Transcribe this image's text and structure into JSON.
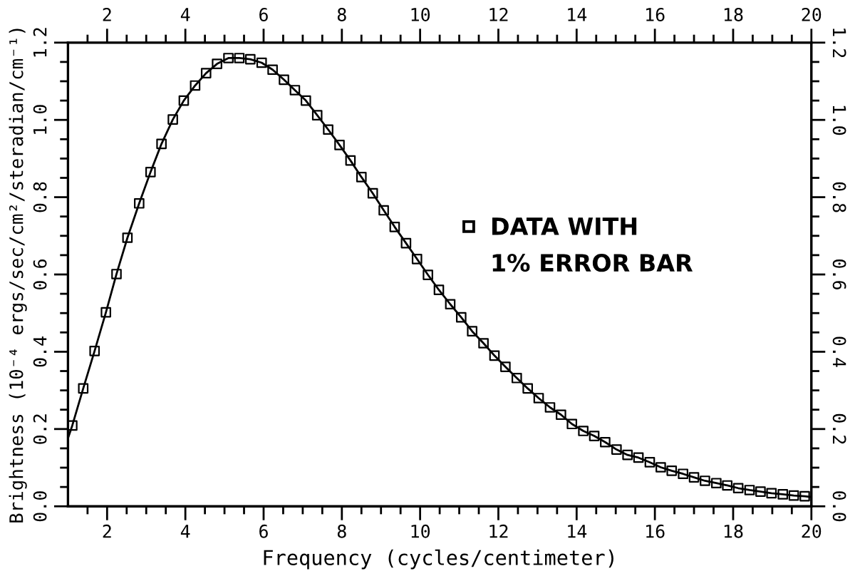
{
  "chart_data": {
    "type": "scatter",
    "xlabel": "Frequency (cycles/centimeter)",
    "ylabel": "Brightness (10⁻⁴ ergs/sec/cm²/steradian/cm⁻¹)",
    "legend": "right",
    "xlim": [
      1,
      20
    ],
    "xticks": [
      {
        "value": 1.5,
        "label": null
      },
      2,
      {
        "value": 2.5,
        "label": null
      },
      {
        "value": 3,
        "label": null
      },
      {
        "value": 3.5,
        "label": null
      },
      4,
      {
        "value": 4.5,
        "label": null
      },
      {
        "value": 5,
        "label": null
      },
      {
        "value": 5.5,
        "label": null
      },
      6,
      {
        "value": 6.5,
        "label": null
      },
      {
        "value": 7,
        "label": null
      },
      {
        "value": 7.5,
        "label": null
      },
      8,
      {
        "value": 8.5,
        "label": null
      },
      {
        "value": 9,
        "label": null
      },
      {
        "value": 9.5,
        "label": null
      },
      10,
      {
        "value": 10.5,
        "label": null
      },
      {
        "value": 11,
        "label": null
      },
      {
        "value": 11.5,
        "label": null
      },
      12,
      {
        "value": 12.5,
        "label": null
      },
      {
        "value": 13,
        "label": null
      },
      {
        "value": 13.5,
        "label": null
      },
      14,
      {
        "value": 14.5,
        "label": null
      },
      {
        "value": 15,
        "label": null
      },
      {
        "value": 15.5,
        "label": null
      },
      16,
      {
        "value": 16.5,
        "label": null
      },
      {
        "value": 17,
        "label": null
      },
      {
        "value": 17.5,
        "label": null
      },
      18,
      {
        "value": 18.5,
        "label": null
      },
      {
        "value": 19,
        "label": null
      },
      {
        "value": 19.5,
        "label": null
      },
      20
    ],
    "x2lim": [
      1,
      20
    ],
    "x2ticks": [
      {
        "value": 1.5,
        "label": null
      },
      2,
      {
        "value": 2.5,
        "label": null
      },
      {
        "value": 3,
        "label": null
      },
      {
        "value": 3.5,
        "label": null
      },
      4,
      {
        "value": 4.5,
        "label": null
      },
      {
        "value": 5,
        "label": null
      },
      {
        "value": 5.5,
        "label": null
      },
      6,
      {
        "value": 6.5,
        "label": null
      },
      {
        "value": 7,
        "label": null
      },
      {
        "value": 7.5,
        "label": null
      },
      8,
      {
        "value": 8.5,
        "label": null
      },
      {
        "value": 9,
        "label": null
      },
      {
        "value": 9.5,
        "label": null
      },
      10,
      {
        "value": 10.5,
        "label": null
      },
      {
        "value": 11,
        "label": null
      },
      {
        "value": 11.5,
        "label": null
      },
      12,
      {
        "value": 12.5,
        "label": null
      },
      {
        "value": 13,
        "label": null
      },
      {
        "value": 13.5,
        "label": null
      },
      14,
      {
        "value": 14.5,
        "label": null
      },
      {
        "value": 15,
        "label": null
      },
      {
        "value": 15.5,
        "label": null
      },
      16,
      {
        "value": 16.5,
        "label": null
      },
      {
        "value": 17,
        "label": null
      },
      {
        "value": 17.5,
        "label": null
      },
      18,
      {
        "value": 18.5,
        "label": null
      },
      {
        "value": 19,
        "label": null
      },
      {
        "value": 19.5,
        "label": null
      },
      20
    ],
    "ylim": [
      0,
      1.2
    ],
    "yticks": [
      {
        "value": 0,
        "label": "0.0"
      },
      {
        "value": 0.05,
        "label": null
      },
      {
        "value": 0.1,
        "label": null
      },
      {
        "value": 0.15,
        "label": null
      },
      0.2,
      {
        "value": 0.25,
        "label": null
      },
      {
        "value": 0.3,
        "label": null
      },
      {
        "value": 0.35,
        "label": null
      },
      0.4,
      {
        "value": 0.45,
        "label": null
      },
      {
        "value": 0.5,
        "label": null
      },
      {
        "value": 0.55,
        "label": null
      },
      0.6,
      {
        "value": 0.65,
        "label": null
      },
      {
        "value": 0.7,
        "label": null
      },
      {
        "value": 0.75,
        "label": null
      },
      0.8,
      {
        "value": 0.85,
        "label": null
      },
      {
        "value": 0.9,
        "label": null
      },
      {
        "value": 0.95,
        "label": null
      },
      {
        "value": 1,
        "label": "1.0"
      },
      {
        "value": 1.05,
        "label": null
      },
      {
        "value": 1.1,
        "label": null
      },
      {
        "value": 1.15,
        "label": null
      },
      1.2
    ],
    "y2lim": [
      0,
      1.2
    ],
    "y2ticks": [
      {
        "value": 0,
        "label": "0.0"
      },
      {
        "value": 0.05,
        "label": null
      },
      {
        "value": 0.1,
        "label": null
      },
      {
        "value": 0.15,
        "label": null
      },
      0.2,
      {
        "value": 0.25,
        "label": null
      },
      {
        "value": 0.3,
        "label": null
      },
      {
        "value": 0.35,
        "label": null
      },
      0.4,
      {
        "value": 0.45,
        "label": null
      },
      {
        "value": 0.5,
        "label": null
      },
      {
        "value": 0.55,
        "label": null
      },
      0.6,
      {
        "value": 0.65,
        "label": null
      },
      {
        "value": 0.7,
        "label": null
      },
      {
        "value": 0.75,
        "label": null
      },
      0.8,
      {
        "value": 0.85,
        "label": null
      },
      {
        "value": 0.9,
        "label": null
      },
      {
        "value": 0.95,
        "label": null
      },
      {
        "value": 1,
        "label": "1.0"
      },
      {
        "value": 1.05,
        "label": null
      },
      {
        "value": 1.1,
        "label": null
      },
      {
        "value": 1.15,
        "label": null
      },
      1.2
    ],
    "series": [
      {
        "type": "line",
        "color": "#000000",
        "marker": "none",
        "line_style": "solid",
        "x": [
          1.0,
          1.11,
          1.39,
          1.68,
          1.97,
          2.24,
          2.52,
          2.82,
          3.11,
          3.39,
          3.68,
          3.96,
          4.25,
          4.53,
          4.81,
          5.1,
          5.38,
          5.66,
          5.95,
          6.23,
          6.52,
          6.8,
          7.08,
          7.37,
          7.65,
          7.94,
          8.22,
          8.5,
          8.79,
          9.07,
          9.35,
          9.64,
          9.92,
          10.2,
          10.48,
          10.77,
          11.05,
          11.33,
          11.62,
          11.9,
          12.18,
          12.47,
          12.75,
          13.03,
          13.32,
          13.6,
          13.88,
          14.17,
          14.45,
          14.73,
          15.02,
          15.3,
          15.58,
          15.87,
          16.15,
          16.43,
          16.72,
          17.0,
          17.28,
          17.57,
          17.85,
          18.13,
          18.42,
          18.7,
          18.98,
          19.27,
          19.55,
          19.83,
          20.0
        ],
        "values": [
          0.176,
          0.209,
          0.305,
          0.402,
          0.502,
          0.601,
          0.695,
          0.784,
          0.865,
          0.938,
          1.001,
          1.05,
          1.089,
          1.121,
          1.145,
          1.16,
          1.16,
          1.157,
          1.148,
          1.13,
          1.104,
          1.077,
          1.05,
          1.012,
          0.975,
          0.935,
          0.895,
          0.852,
          0.81,
          0.766,
          0.723,
          0.681,
          0.64,
          0.599,
          0.56,
          0.523,
          0.489,
          0.453,
          0.422,
          0.39,
          0.361,
          0.332,
          0.305,
          0.28,
          0.256,
          0.237,
          0.213,
          0.195,
          0.182,
          0.166,
          0.147,
          0.133,
          0.126,
          0.114,
          0.101,
          0.092,
          0.084,
          0.075,
          0.066,
          0.06,
          0.054,
          0.047,
          0.042,
          0.038,
          0.034,
          0.031,
          0.028,
          0.026,
          0.024
        ]
      },
      {
        "name": "DATA WITH\n1% ERROR BAR",
        "color": "#000000",
        "marker": "square",
        "x": [
          1.11,
          1.39,
          1.68,
          1.97,
          2.24,
          2.52,
          2.82,
          3.11,
          3.39,
          3.68,
          3.96,
          4.25,
          4.53,
          4.81,
          5.1,
          5.38,
          5.66,
          5.95,
          6.23,
          6.52,
          6.8,
          7.08,
          7.37,
          7.65,
          7.94,
          8.22,
          8.5,
          8.79,
          9.07,
          9.35,
          9.64,
          9.92,
          10.2,
          10.48,
          10.77,
          11.05,
          11.33,
          11.62,
          11.9,
          12.18,
          12.47,
          12.75,
          13.03,
          13.32,
          13.6,
          13.88,
          14.17,
          14.45,
          14.73,
          15.02,
          15.3,
          15.58,
          15.87,
          16.15,
          16.43,
          16.72,
          17.0,
          17.28,
          17.57,
          17.85,
          18.13,
          18.42,
          18.7,
          18.98,
          19.27,
          19.55,
          19.83
        ],
        "values": [
          0.209,
          0.305,
          0.402,
          0.502,
          0.601,
          0.695,
          0.784,
          0.865,
          0.938,
          1.001,
          1.05,
          1.089,
          1.121,
          1.145,
          1.16,
          1.16,
          1.157,
          1.148,
          1.13,
          1.104,
          1.077,
          1.05,
          1.012,
          0.975,
          0.935,
          0.895,
          0.852,
          0.81,
          0.766,
          0.723,
          0.681,
          0.64,
          0.599,
          0.56,
          0.523,
          0.489,
          0.453,
          0.422,
          0.39,
          0.361,
          0.332,
          0.305,
          0.28,
          0.256,
          0.237,
          0.213,
          0.195,
          0.182,
          0.166,
          0.147,
          0.133,
          0.126,
          0.114,
          0.101,
          0.092,
          0.084,
          0.075,
          0.066,
          0.06,
          0.054,
          0.047,
          0.042,
          0.038,
          0.034,
          0.031,
          0.028,
          0.026
        ]
      }
    ]
  }
}
